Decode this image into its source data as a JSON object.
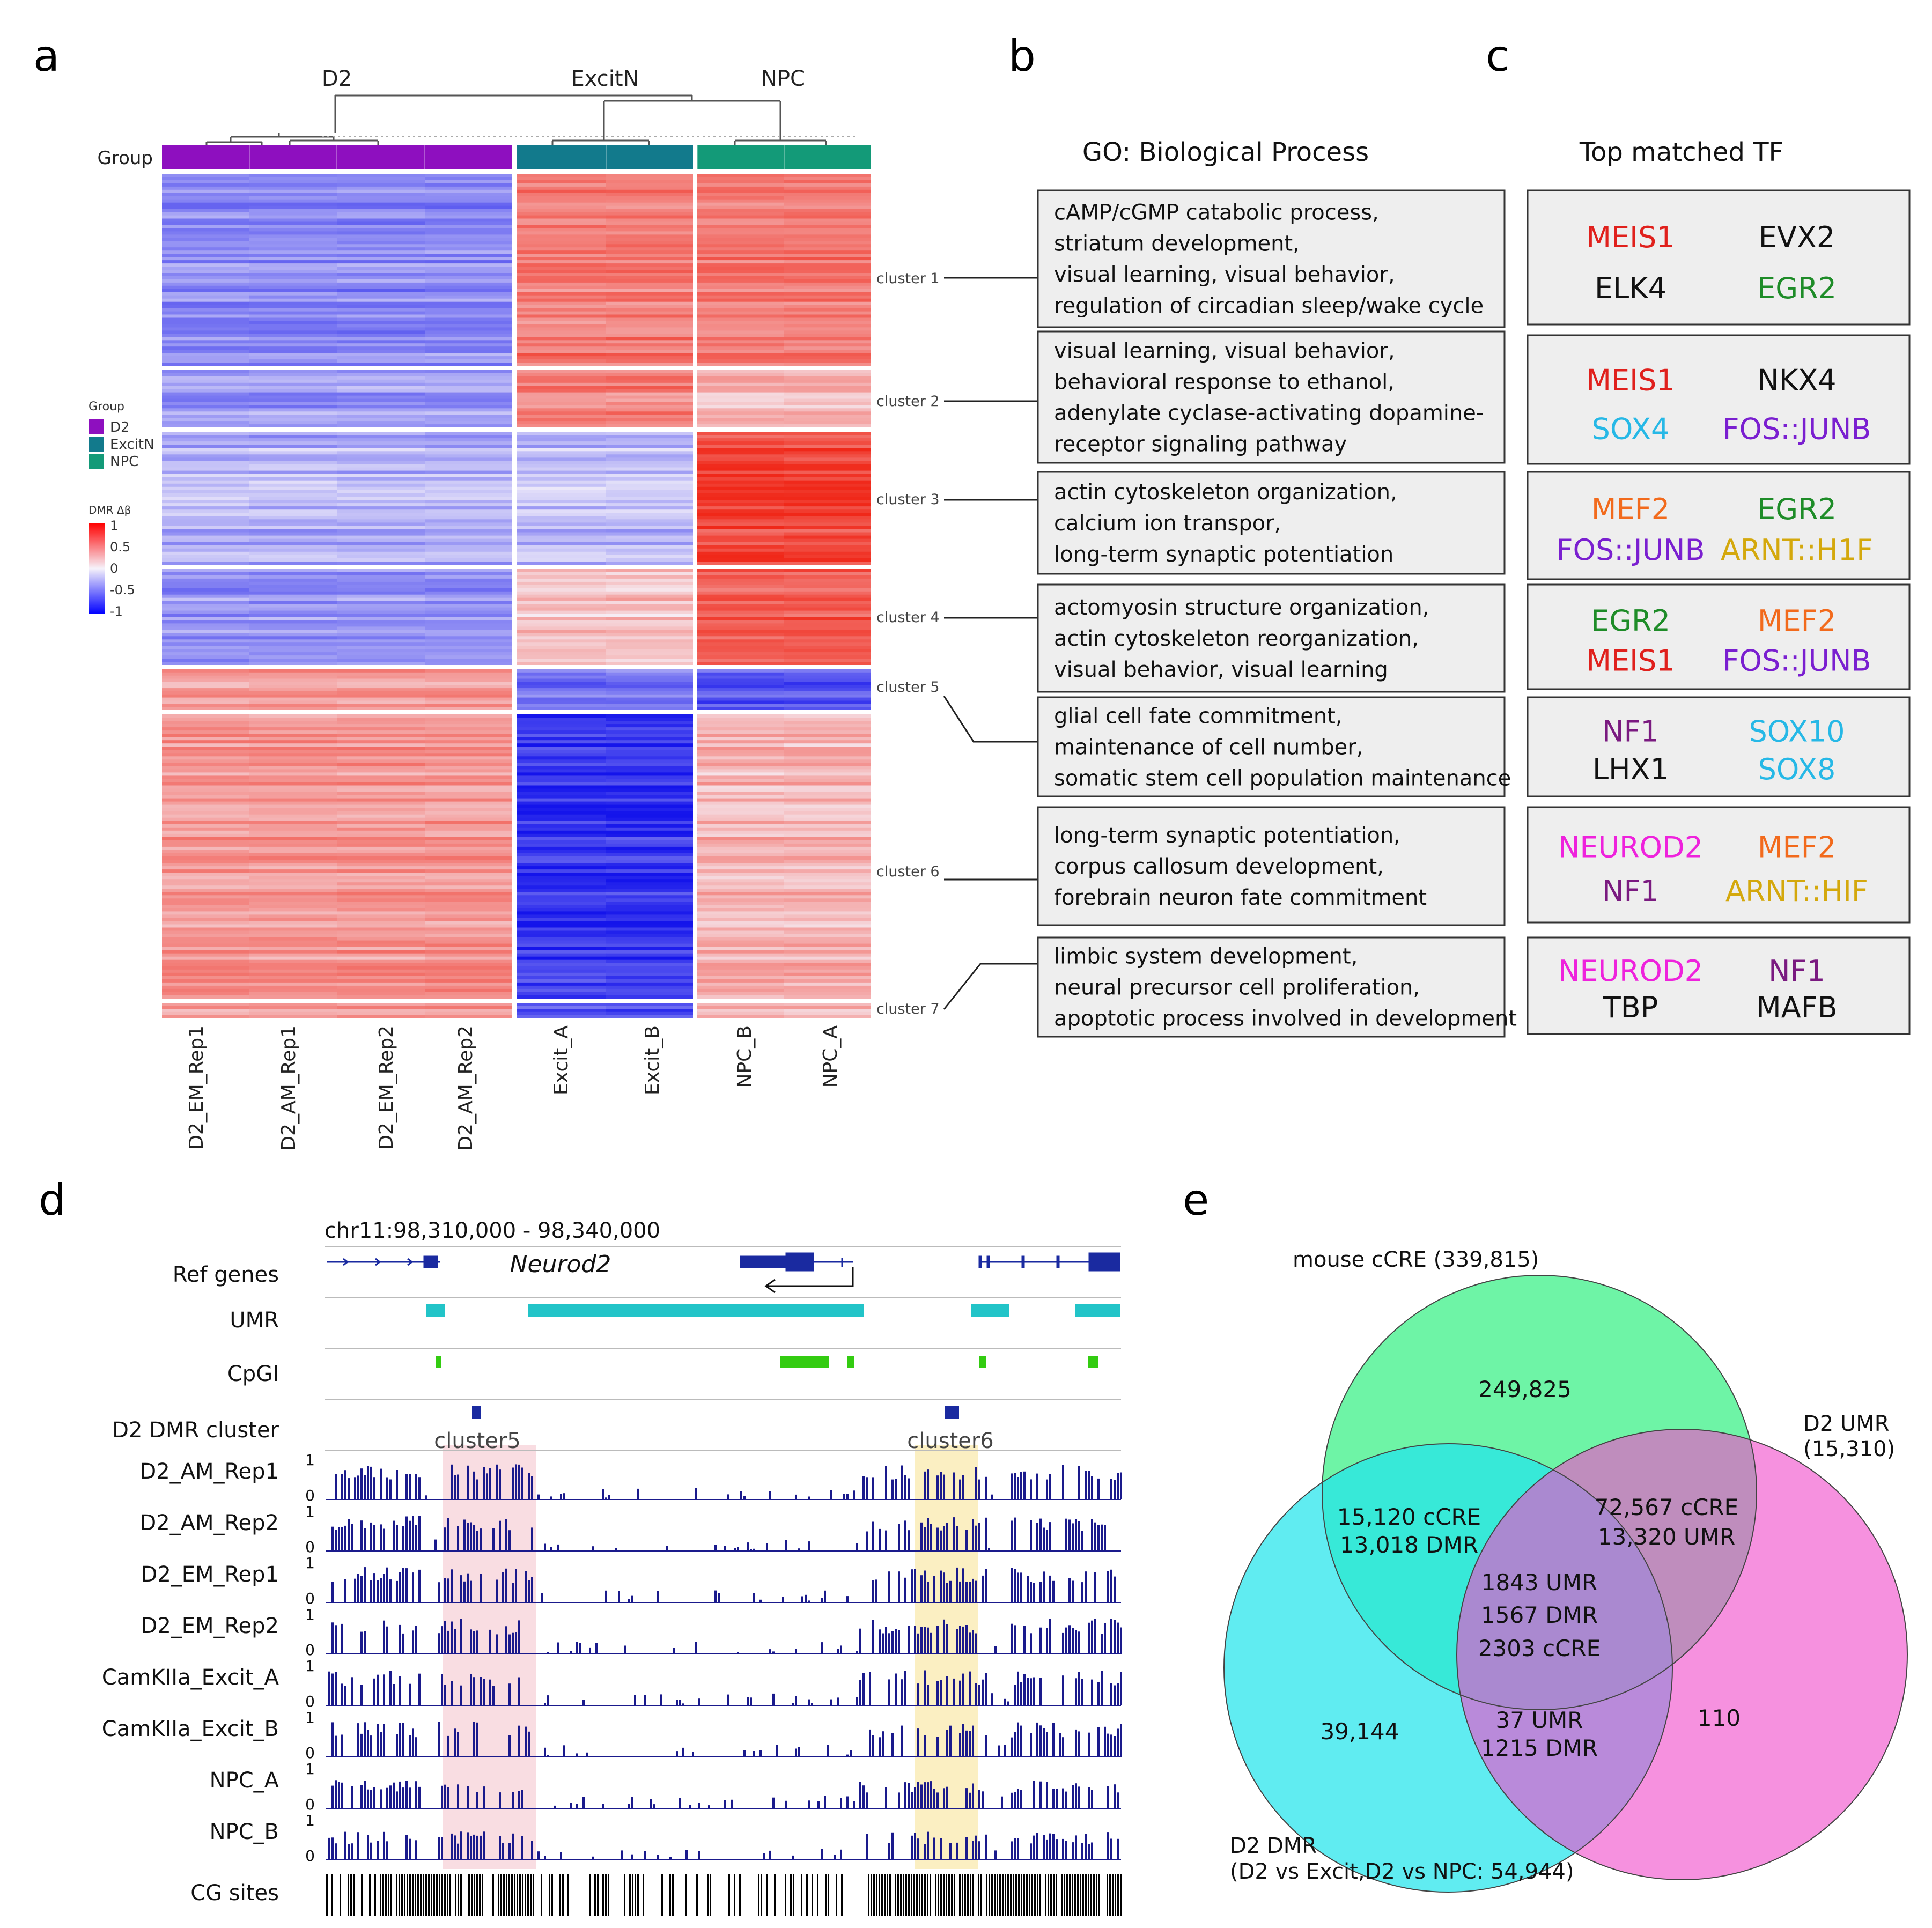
{
  "panels": {
    "a": "a",
    "b": "b",
    "c": "c",
    "d": "d",
    "e": "e"
  },
  "panel_a": {
    "dendro_labels": [
      "D2",
      "ExcitN",
      "NPC"
    ],
    "group_label": "Group",
    "legend": {
      "group_title": "Group",
      "groups": [
        {
          "name": "D2",
          "color": "#8e0fbf"
        },
        {
          "name": "ExcitN",
          "color": "#127a8c"
        },
        {
          "name": "NPC",
          "color": "#139a78"
        }
      ],
      "scale_title": "DMR Δβ",
      "ticks": [
        "1",
        "0.5",
        "0",
        "-0.5",
        "-1"
      ]
    },
    "samples": [
      "D2_EM_Rep1",
      "D2_AM_Rep1",
      "D2_EM_Rep2",
      "D2_AM_Rep2",
      "Excit_A",
      "Excit_B",
      "NPC_B",
      "NPC_A"
    ],
    "cluster_labels": [
      "cluster 1",
      "cluster 2",
      "cluster 3",
      "cluster 4",
      "cluster 5",
      "cluster 6",
      "cluster 7"
    ],
    "colors": {
      "pos": "#e8321c",
      "neg": "#1010e6",
      "mid": "#f4f0f8"
    }
  },
  "panel_b": {
    "title": "GO: Biological Process",
    "boxes": [
      [
        "cAMP/cGMP catabolic process,",
        "striatum development,",
        "visual learning,    visual behavior,",
        "regulation of circadian sleep/wake cycle"
      ],
      [
        "visual learning,    visual behavior,",
        "behavioral response to ethanol,",
        "adenylate cyclase-activating dopamine-",
        "receptor signaling pathway"
      ],
      [
        "actin cytoskeleton organization,",
        "calcium ion transpor,",
        "long-term synaptic potentiation"
      ],
      [
        "actomyosin structure organization,",
        "actin cytoskeleton reorganization,",
        "visual behavior,     visual learning"
      ],
      [
        "glial cell fate commitment,",
        "maintenance of cell number,",
        "somatic stem cell population maintenance"
      ],
      [
        "long-term synaptic potentiation,",
        "corpus callosum development,",
        "forebrain neuron fate commitment"
      ],
      [
        "limbic system development,",
        "neural precursor cell proliferation,",
        "apoptotic process involved in development"
      ]
    ]
  },
  "panel_c": {
    "title": "Top matched TF",
    "boxes": [
      [
        {
          "t": "MEIS1",
          "c": "#e0201c"
        },
        {
          "t": "EVX2",
          "c": "#111111"
        },
        {
          "t": "ELK4",
          "c": "#111111"
        },
        {
          "t": "EGR2",
          "c": "#1e8c28"
        }
      ],
      [
        {
          "t": "MEIS1",
          "c": "#e0201c"
        },
        {
          "t": "NKX4",
          "c": "#111111"
        },
        {
          "t": "SOX4",
          "c": "#26b8e6"
        },
        {
          "t": "FOS::JUNB",
          "c": "#7a1fd0"
        }
      ],
      [
        {
          "t": "MEF2",
          "c": "#f26a1c"
        },
        {
          "t": "EGR2",
          "c": "#1e8c28"
        },
        {
          "t": "FOS::JUNB",
          "c": "#7a1fd0"
        },
        {
          "t": "ARNT::H1F",
          "c": "#d4a80c"
        }
      ],
      [
        {
          "t": "EGR2",
          "c": "#1e8c28"
        },
        {
          "t": "MEF2",
          "c": "#f26a1c"
        },
        {
          "t": "MEIS1",
          "c": "#e0201c"
        },
        {
          "t": "FOS::JUNB",
          "c": "#7a1fd0"
        }
      ],
      [
        {
          "t": "NF1",
          "c": "#7a1a80"
        },
        {
          "t": "SOX10",
          "c": "#26b8e6"
        },
        {
          "t": "LHX1",
          "c": "#111111"
        },
        {
          "t": "SOX8",
          "c": "#26b8e6"
        }
      ],
      [
        {
          "t": "NEUROD2",
          "c": "#ee22dc"
        },
        {
          "t": "MEF2",
          "c": "#f26a1c"
        },
        {
          "t": "NF1",
          "c": "#7a1a80"
        },
        {
          "t": "ARNT::HIF",
          "c": "#d4a80c"
        }
      ],
      [
        {
          "t": "NEUROD2",
          "c": "#ee22dc"
        },
        {
          "t": "NF1",
          "c": "#7a1a80"
        },
        {
          "t": "TBP",
          "c": "#111111"
        },
        {
          "t": "MAFB",
          "c": "#111111"
        }
      ]
    ]
  },
  "panel_d": {
    "coords": "chr11:98,310,000 - 98,340,000",
    "gene": "Neurod2",
    "track_labels": [
      "Ref genes",
      "UMR",
      "CpGI",
      "D2 DMR cluster"
    ],
    "highlights": [
      "cluster5",
      "cluster6"
    ],
    "samples": [
      "D2_AM_Rep1",
      "D2_AM_Rep2",
      "D2_EM_Rep1",
      "D2_EM_Rep2",
      "CamKIIa_Excit_A",
      "CamKIIa_Excit_B",
      "NPC_A",
      "NPC_B"
    ],
    "axis_ticks": [
      "1",
      "0"
    ],
    "cg_label": "CG sites",
    "colors": {
      "bars": "#1a1a8c",
      "umr": "#22c4c8",
      "cpg": "#33cc11",
      "dmr": "#1a2aa0",
      "hl1": "#f9dde2",
      "hl2": "#fbefc2"
    }
  },
  "panel_e": {
    "sets": {
      "cre": "mouse cCRE (339,815)",
      "umr": [
        "D2 UMR",
        "(15,310)"
      ],
      "dmr": [
        "D2 DMR",
        "(D2 vs Excit,D2 vs NPC: 54,944)"
      ]
    },
    "regions": {
      "cre_only": "249,825",
      "cre_dmr": [
        "15,120 cCRE",
        "13,018 DMR"
      ],
      "cre_umr": [
        "72,567 cCRE",
        "13,320 UMR"
      ],
      "all": [
        "1843 UMR",
        "1567 DMR",
        "2303 cCRE"
      ],
      "dmr_only": "39,144",
      "umr_only": "110",
      "dmr_umr": [
        "37 UMR",
        "1215 DMR"
      ]
    },
    "colors": {
      "cre": "#55f296",
      "dmr": "#22e4ec",
      "umr": "#f04ecc"
    }
  }
}
